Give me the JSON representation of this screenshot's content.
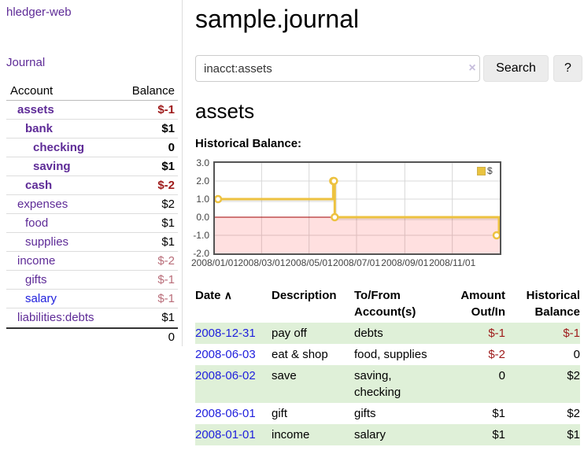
{
  "app": {
    "brand": "hledger-web",
    "nav_journal": "Journal"
  },
  "colors": {
    "accent_purple": "#5e2b97",
    "link_blue": "#2121dd",
    "negative_strong": "#9e1a1a",
    "negative_muted": "#b96d79",
    "row_green": "#dff0d8",
    "chart_line_yellow": "#edc240",
    "chart_zero_line": "#a00000",
    "chart_negative_region": "#fbdcdc",
    "chart_border": "#545454"
  },
  "sidebar": {
    "header": {
      "account": "Account",
      "balance": "Balance"
    },
    "rows": [
      {
        "account": "assets",
        "balance": "$-1",
        "depth": 0,
        "bold": true,
        "balance_style": "negative",
        "link_color": "purple"
      },
      {
        "account": "bank",
        "balance": "$1",
        "depth": 1,
        "bold": true,
        "balance_style": "normal",
        "link_color": "purple"
      },
      {
        "account": "checking",
        "balance": "0",
        "depth": 2,
        "bold": true,
        "balance_style": "normal",
        "link_color": "purple"
      },
      {
        "account": "saving",
        "balance": "$1",
        "depth": 2,
        "bold": true,
        "balance_style": "normal",
        "link_color": "purple"
      },
      {
        "account": "cash",
        "balance": "$-2",
        "depth": 1,
        "bold": true,
        "balance_style": "negative",
        "link_color": "purple"
      },
      {
        "account": "expenses",
        "balance": "$2",
        "depth": 0,
        "bold": false,
        "balance_style": "normal",
        "link_color": "purple"
      },
      {
        "account": "food",
        "balance": "$1",
        "depth": 1,
        "bold": false,
        "balance_style": "normal",
        "link_color": "purple"
      },
      {
        "account": "supplies",
        "balance": "$1",
        "depth": 1,
        "bold": false,
        "balance_style": "normal",
        "link_color": "purple"
      },
      {
        "account": "income",
        "balance": "$-2",
        "depth": 0,
        "bold": false,
        "balance_style": "negative-muted",
        "link_color": "purple"
      },
      {
        "account": "gifts",
        "balance": "$-1",
        "depth": 1,
        "bold": false,
        "balance_style": "negative-muted",
        "link_color": "purple"
      },
      {
        "account": "salary",
        "balance": "$-1",
        "depth": 1,
        "bold": false,
        "balance_style": "negative-muted",
        "link_color": "blue"
      },
      {
        "account": "liabilities:debts",
        "balance": "$1",
        "depth": 0,
        "bold": false,
        "balance_style": "normal",
        "link_color": "purple"
      }
    ],
    "total_balance": "0"
  },
  "main": {
    "title": "sample.journal",
    "search": {
      "query": "inacct:assets",
      "clear_icon": "×",
      "button_label": "Search",
      "help_label": "?"
    },
    "account_title": "assets",
    "chart_label": "Historical Balance:"
  },
  "chart_data": {
    "type": "line",
    "step": true,
    "title": "Historical Balance",
    "series": [
      {
        "name": "$",
        "color": "#edc240",
        "points": [
          {
            "date": "2008-01-01",
            "value": 1
          },
          {
            "date": "2008-06-01",
            "value": 2
          },
          {
            "date": "2008-06-02",
            "value": 2
          },
          {
            "date": "2008-06-03",
            "value": 0
          },
          {
            "date": "2008-12-31",
            "value": -1
          }
        ]
      }
    ],
    "x_ticks": [
      "2008/01/01",
      "2008/03/01",
      "2008/05/01",
      "2008/07/01",
      "2008/09/01",
      "2008/11/01"
    ],
    "y_ticks": [
      3.0,
      2.0,
      1.0,
      0.0,
      -1.0,
      -2.0
    ],
    "x_range": [
      "2008-01-01",
      "2009-01-01"
    ],
    "ylim": [
      -2,
      3
    ],
    "grid": true,
    "legend_position": "top-right",
    "zero_line_color": "#a00000",
    "negative_region": true
  },
  "register": {
    "headers": {
      "date": "Date",
      "sort_icon": "∧",
      "description": "Description",
      "accounts": "To/From Account(s)",
      "amount": "Amount Out/In",
      "balance": "Historical Balance"
    },
    "rows": [
      {
        "date": "2008-12-31",
        "description": "pay off",
        "accounts": "debts",
        "amount": "$-1",
        "amount_negative": true,
        "balance": "$-1",
        "balance_negative": true
      },
      {
        "date": "2008-06-03",
        "description": "eat & shop",
        "accounts": "food, supplies",
        "amount": "$-2",
        "amount_negative": true,
        "balance": "0",
        "balance_negative": false
      },
      {
        "date": "2008-06-02",
        "description": "save",
        "accounts": "saving, checking",
        "amount": "0",
        "amount_negative": false,
        "balance": "$2",
        "balance_negative": false
      },
      {
        "date": "2008-06-01",
        "description": "gift",
        "accounts": "gifts",
        "amount": "$1",
        "amount_negative": false,
        "balance": "$2",
        "balance_negative": false
      },
      {
        "date": "2008-01-01",
        "description": "income",
        "accounts": "salary",
        "amount": "$1",
        "amount_negative": false,
        "balance": "$1",
        "balance_negative": false
      }
    ]
  }
}
